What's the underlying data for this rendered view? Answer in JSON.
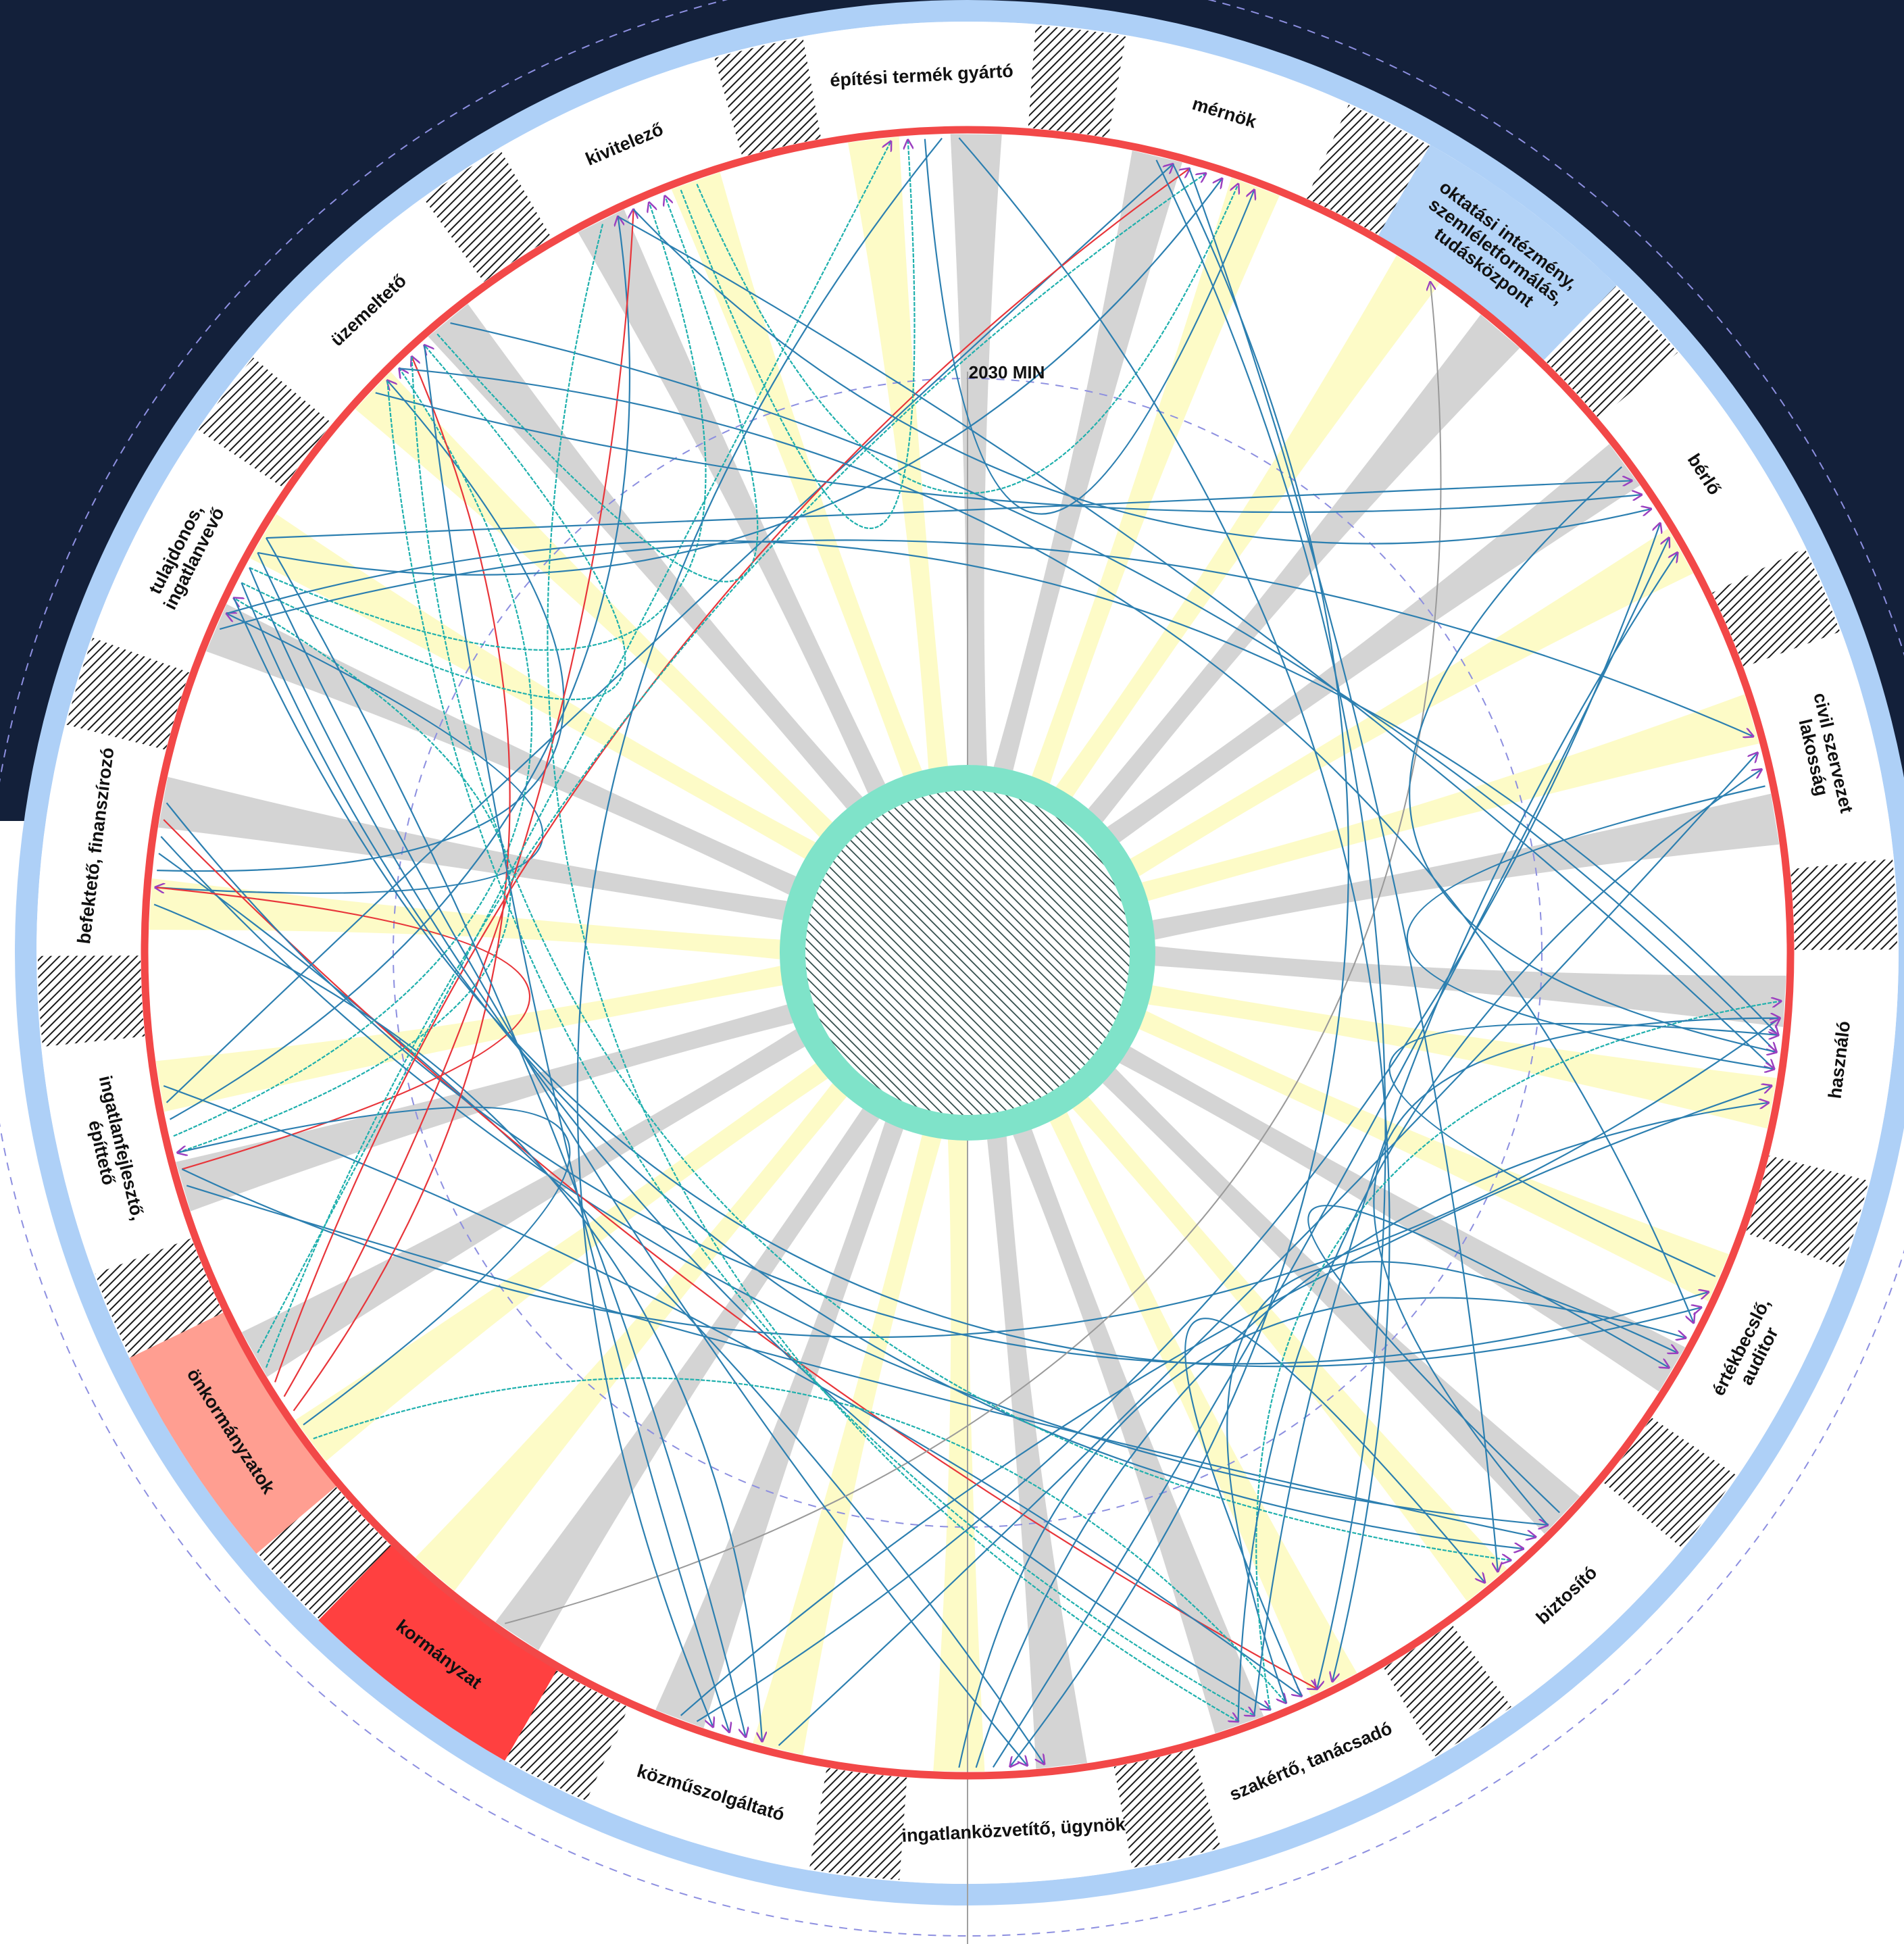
{
  "center_label": "2030 MIN",
  "segments": [
    {
      "id": "befekteto",
      "lines": [
        "befektető, finanszírozó"
      ],
      "fill": "#ffffff"
    },
    {
      "id": "tulajdonos",
      "lines": [
        "tulajdonos,",
        "ingatlanvevő"
      ],
      "fill": "#ffffff"
    },
    {
      "id": "uzemelteto",
      "lines": [
        "üzemeltető"
      ],
      "fill": "#ffffff"
    },
    {
      "id": "kivitelezo",
      "lines": [
        "kivitelező"
      ],
      "fill": "#ffffff"
    },
    {
      "id": "epitesi",
      "lines": [
        "építési termék gyártó"
      ],
      "fill": "#ffffff"
    },
    {
      "id": "mernok",
      "lines": [
        "mérnök"
      ],
      "fill": "#ffffff"
    },
    {
      "id": "oktatasi",
      "lines": [
        "oktatási intézmény,",
        "szemléletformálás,",
        "tudásközpont"
      ],
      "fill": "#b3d3f7"
    },
    {
      "id": "berlo",
      "lines": [
        "bérlő"
      ],
      "fill": "#ffffff"
    },
    {
      "id": "civil",
      "lines": [
        "civil szervezet",
        "lakosság"
      ],
      "fill": "#ffffff"
    },
    {
      "id": "hasznalo",
      "lines": [
        "használó"
      ],
      "fill": "#ffffff"
    },
    {
      "id": "ertekbecslo",
      "lines": [
        "értékbecslő,",
        "auditor"
      ],
      "fill": "#ffffff"
    },
    {
      "id": "biztosito",
      "lines": [
        "biztosító"
      ],
      "fill": "#ffffff"
    },
    {
      "id": "szakerto",
      "lines": [
        "szakértő, tanácsadó"
      ],
      "fill": "#ffffff"
    },
    {
      "id": "ingatlankozvetito",
      "lines": [
        "ingatlanközvetítő, ügynök"
      ],
      "fill": "#ffffff"
    },
    {
      "id": "kozmu",
      "lines": [
        "közműszolgáltató"
      ],
      "fill": "#ffffff"
    },
    {
      "id": "kormanyzat",
      "lines": [
        "kormányzat"
      ],
      "fill": "#ff4040"
    },
    {
      "id": "onkormanyzatok",
      "lines": [
        "önkormányzatok"
      ],
      "fill": "#ff9e91"
    },
    {
      "id": "ingatlanfejleszto",
      "lines": [
        "ingatlanfejlesztő,",
        "építtető"
      ],
      "fill": "#ffffff"
    }
  ],
  "colors": {
    "background_dark": "#13203a",
    "outer_ring": "#aed0f7",
    "red_ring": "#f24848",
    "hub": "#7fe3c9",
    "fan_yellow": "#fdfbc4",
    "fan_gray": "#d2d2d2",
    "link_blue": "#2c7fb0",
    "link_teal": "#1fb0ad",
    "link_red": "#e8353a",
    "link_gray": "#9a9a9a",
    "dashed": "#8d8fe0"
  },
  "links": [
    {
      "from": "befekteto",
      "to": "tulajdonos",
      "color": "blue"
    },
    {
      "from": "befekteto",
      "to": "uzemelteto",
      "color": "blue"
    },
    {
      "from": "befekteto",
      "to": "ingatlankozvetito",
      "color": "blue"
    },
    {
      "from": "befekteto",
      "to": "biztosito",
      "color": "blue"
    },
    {
      "from": "befekteto",
      "to": "szakerto",
      "color": "red"
    },
    {
      "from": "befekteto",
      "to": "ertekbecslo",
      "color": "blue"
    },
    {
      "from": "befekteto",
      "to": "kozmu",
      "color": "blue"
    },
    {
      "from": "ingatlanfejleszto",
      "to": "befekteto",
      "color": "red"
    },
    {
      "from": "ingatlanfejleszto",
      "to": "tulajdonos",
      "color": "teal"
    },
    {
      "from": "ingatlanfejleszto",
      "to": "uzemelteto",
      "color": "teal"
    },
    {
      "from": "ingatlanfejleszto",
      "to": "kivitelezo",
      "color": "blue"
    },
    {
      "from": "ingatlanfejleszto",
      "to": "mernok",
      "color": "blue"
    },
    {
      "from": "ingatlanfejleszto",
      "to": "szakerto",
      "color": "blue"
    },
    {
      "from": "ingatlanfejleszto",
      "to": "biztosito",
      "color": "blue"
    },
    {
      "from": "ingatlanfejleszto",
      "to": "hasznalo",
      "color": "blue"
    },
    {
      "from": "onkormanyzatok",
      "to": "ingatlanfejleszto",
      "color": "blue"
    },
    {
      "from": "onkormanyzatok",
      "to": "uzemelteto",
      "color": "red"
    },
    {
      "from": "onkormanyzatok",
      "to": "kivitelezo",
      "color": "red"
    },
    {
      "from": "onkormanyzatok",
      "to": "mernok",
      "color": "red"
    },
    {
      "from": "onkormanyzatok",
      "to": "mernok",
      "color": "teal"
    },
    {
      "from": "onkormanyzatok",
      "to": "epitesi",
      "color": "teal"
    },
    {
      "from": "onkormanyzatok",
      "to": "szakerto",
      "color": "teal"
    },
    {
      "from": "kormanyzat",
      "to": "oktatasi",
      "color": "gray"
    },
    {
      "from": "tulajdonos",
      "to": "uzemelteto",
      "color": "teal"
    },
    {
      "from": "tulajdonos",
      "to": "kivitelezo",
      "color": "teal"
    },
    {
      "from": "tulajdonos",
      "to": "mernok",
      "color": "blue"
    },
    {
      "from": "tulajdonos",
      "to": "berlo",
      "color": "blue"
    },
    {
      "from": "tulajdonos",
      "to": "civil",
      "color": "blue"
    },
    {
      "from": "tulajdonos",
      "to": "hasznalo",
      "color": "blue"
    },
    {
      "from": "tulajdonos",
      "to": "ertekbecslo",
      "color": "blue"
    },
    {
      "from": "tulajdonos",
      "to": "biztosito",
      "color": "blue"
    },
    {
      "from": "tulajdonos",
      "to": "szakerto",
      "color": "blue"
    },
    {
      "from": "tulajdonos",
      "to": "ingatlankozvetito",
      "color": "blue"
    },
    {
      "from": "tulajdonos",
      "to": "kozmu",
      "color": "blue"
    },
    {
      "from": "uzemelteto",
      "to": "kivitelezo",
      "color": "teal"
    },
    {
      "from": "uzemelteto",
      "to": "hasznalo",
      "color": "blue"
    },
    {
      "from": "uzemelteto",
      "to": "berlo",
      "color": "blue"
    },
    {
      "from": "uzemelteto",
      "to": "szakerto",
      "color": "teal"
    },
    {
      "from": "uzemelteto",
      "to": "ertekbecslo",
      "color": "blue"
    },
    {
      "from": "uzemelteto",
      "to": "biztosito",
      "color": "teal"
    },
    {
      "from": "uzemelteto",
      "to": "kozmu",
      "color": "blue"
    },
    {
      "from": "kivitelezo",
      "to": "epitesi",
      "color": "teal"
    },
    {
      "from": "kivitelezo",
      "to": "mernok",
      "color": "teal"
    },
    {
      "from": "kivitelezo",
      "to": "szakerto",
      "color": "teal"
    },
    {
      "from": "kivitelezo",
      "to": "hasznalo",
      "color": "blue"
    },
    {
      "from": "kivitelezo",
      "to": "berlo",
      "color": "blue"
    },
    {
      "from": "epitesi",
      "to": "mernok",
      "color": "blue"
    },
    {
      "from": "epitesi",
      "to": "kozmu",
      "color": "blue"
    },
    {
      "from": "epitesi",
      "to": "szakerto",
      "color": "blue"
    },
    {
      "from": "mernok",
      "to": "szakerto",
      "color": "blue"
    },
    {
      "from": "mernok",
      "to": "ingatlankozvetito",
      "color": "blue"
    },
    {
      "from": "mernok",
      "to": "biztosito",
      "color": "blue"
    },
    {
      "from": "kozmu",
      "to": "berlo",
      "color": "blue"
    },
    {
      "from": "kozmu",
      "to": "hasznalo",
      "color": "blue"
    },
    {
      "from": "kozmu",
      "to": "civil",
      "color": "blue"
    },
    {
      "from": "ingatlankozvetito",
      "to": "berlo",
      "color": "blue"
    },
    {
      "from": "ingatlankozvetito",
      "to": "hasznalo",
      "color": "blue"
    },
    {
      "from": "ingatlankozvetito",
      "to": "ertekbecslo",
      "color": "blue"
    },
    {
      "from": "szakerto",
      "to": "biztosito",
      "color": "blue"
    },
    {
      "from": "szakerto",
      "to": "ertekbecslo",
      "color": "blue"
    },
    {
      "from": "szakerto",
      "to": "hasznalo",
      "color": "teal"
    },
    {
      "from": "szakerto",
      "to": "berlo",
      "color": "blue"
    },
    {
      "from": "szakerto",
      "to": "civil",
      "color": "blue"
    },
    {
      "from": "biztosito",
      "to": "ertekbecslo",
      "color": "blue"
    },
    {
      "from": "biztosito",
      "to": "hasznalo",
      "color": "blue"
    },
    {
      "from": "ertekbecslo",
      "to": "hasznalo",
      "color": "blue"
    },
    {
      "from": "berlo",
      "to": "hasznalo",
      "color": "blue"
    },
    {
      "from": "civil",
      "to": "hasznalo",
      "color": "blue"
    }
  ]
}
